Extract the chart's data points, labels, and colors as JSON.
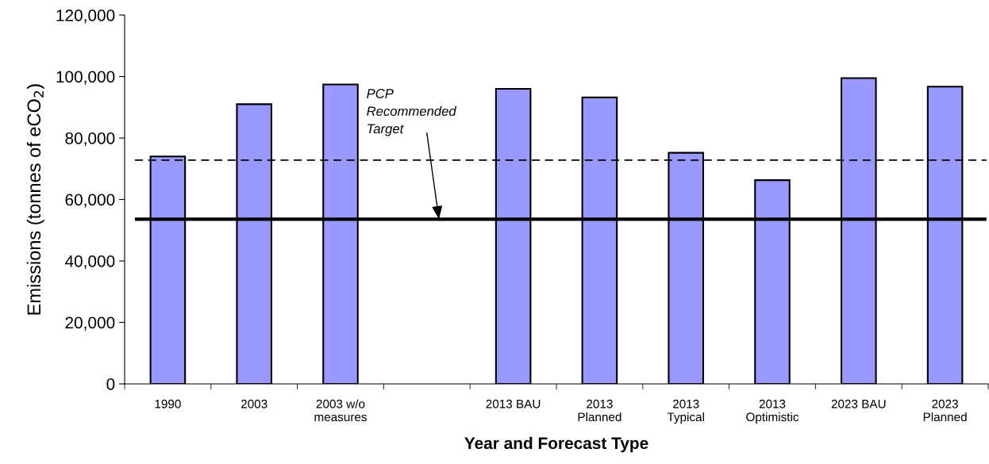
{
  "chart_data": {
    "type": "bar",
    "xlabel": "Year and Forecast Type",
    "ylabel": "Emissions (tonnes of eCO$_{2}$)",
    "categories": [
      "1990",
      "2003",
      "2003 w/o\nmeasures",
      null,
      "2013 BAU",
      "2013\nPlanned",
      "2013\nTypical",
      "2013\nOptimistic",
      "2023 BAU",
      "2023\nPlanned"
    ],
    "values": [
      74000,
      91000,
      97400,
      null,
      96000,
      93200,
      75200,
      66300,
      99500,
      96700
    ],
    "color": "#9999ff",
    "ylim": [
      0,
      120000
    ],
    "yticks": [
      {
        "value": 0,
        "label": "0"
      },
      {
        "value": 20000,
        "label": "20,000"
      },
      {
        "value": 40000,
        "label": "40,000"
      },
      {
        "value": 60000,
        "label": "60,000"
      },
      {
        "value": 80000,
        "label": "80,000"
      },
      {
        "value": 100000,
        "label": "100,000"
      },
      {
        "value": 120000,
        "label": "120,000"
      }
    ],
    "ref_lines": [
      {
        "axis": "y",
        "value": 53600,
        "label": "PCP\nRecommended\nTarget",
        "color": "#000000",
        "line_style": "solid"
      },
      {
        "axis": "y",
        "value": 72800,
        "color": "#000000",
        "line_style": "dashed"
      }
    ],
    "grid": false,
    "legend": false
  }
}
